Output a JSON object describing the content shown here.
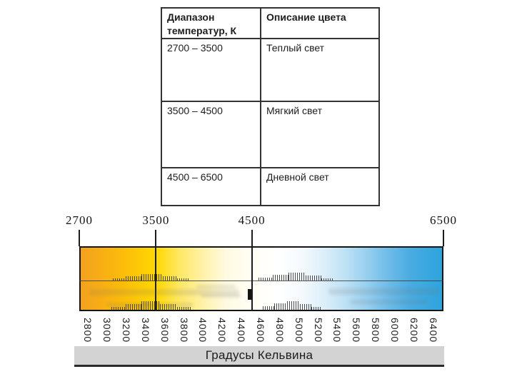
{
  "table": {
    "col1_header": "Диапазон температур, К",
    "col2_header": "Описание цвета",
    "rows": [
      {
        "range": "2700 – 3500",
        "description": "Теплый свет"
      },
      {
        "range": "3500 – 4500",
        "description": "Мягкий свет"
      },
      {
        "range": "4500 – 6500",
        "description": "Дневной свет"
      }
    ]
  },
  "scale": {
    "caption": "Градусы Кельвина",
    "kelvin_min": 2700,
    "kelvin_max": 6500,
    "top_labels": [
      "2700",
      "3500",
      "4500",
      "6500"
    ],
    "tick_labels": [
      "2800",
      "3000",
      "3200",
      "3400",
      "3600",
      "3800",
      "4000",
      "4200",
      "4400",
      "4600",
      "4800",
      "5000",
      "5200",
      "5400",
      "5600",
      "5800",
      "6000",
      "6200",
      "6400"
    ],
    "gradient_stops": [
      {
        "pos": 0,
        "color": "#F3A11E"
      },
      {
        "pos": 11,
        "color": "#FBBB0B"
      },
      {
        "pos": 21,
        "color": "#FFD802"
      },
      {
        "pos": 27,
        "color": "#FFE75F"
      },
      {
        "pos": 33,
        "color": "#FFF0A0"
      },
      {
        "pos": 40,
        "color": "#FFFAE0"
      },
      {
        "pos": 47,
        "color": "#FFFEF4"
      },
      {
        "pos": 55,
        "color": "#FFFFFF"
      },
      {
        "pos": 61,
        "color": "#F5FAFD"
      },
      {
        "pos": 67,
        "color": "#DEEFFA"
      },
      {
        "pos": 73,
        "color": "#BFE2F5"
      },
      {
        "pos": 79,
        "color": "#98D0EF"
      },
      {
        "pos": 85,
        "color": "#6FBCE8"
      },
      {
        "pos": 91,
        "color": "#4AACE1"
      },
      {
        "pos": 100,
        "color": "#2DA4DE"
      }
    ],
    "key_colors": {
      "warm": "#F3A11E",
      "yellow": "#FFD802",
      "neutral": "#FFFFFF",
      "cool": "#2DA4DE"
    }
  },
  "chart_data": {
    "type": "heatmap",
    "xlabel": "Градусы Кельвина",
    "x_ticks_top": [
      2700,
      3500,
      4500,
      6500
    ],
    "x_ticks_bottom": [
      2800,
      3000,
      3200,
      3400,
      3600,
      3800,
      4000,
      4200,
      4400,
      4600,
      4800,
      5000,
      5200,
      5400,
      5600,
      5800,
      6000,
      6200,
      6400
    ],
    "xlim": [
      2700,
      6500
    ],
    "ranges": [
      {
        "from": 2700,
        "to": 3500,
        "label": "Теплый свет"
      },
      {
        "from": 3500,
        "to": 4500,
        "label": "Мягкий свет"
      },
      {
        "from": 4500,
        "to": 6500,
        "label": "Дневной свет"
      }
    ]
  }
}
